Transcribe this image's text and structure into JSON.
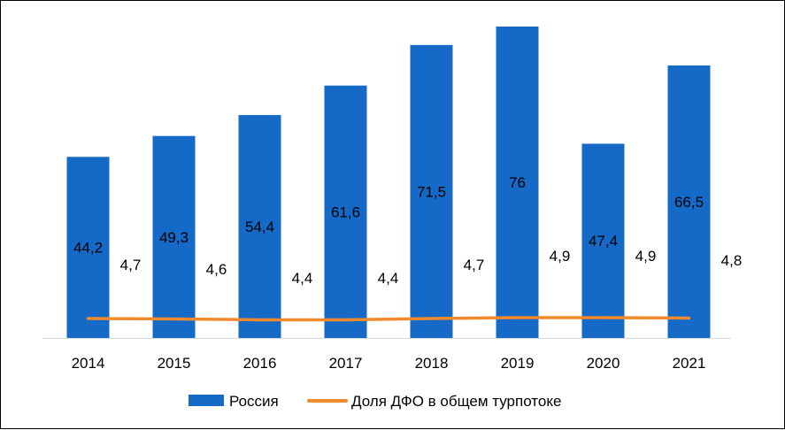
{
  "chart_data": {
    "type": "bar",
    "categories": [
      "2014",
      "2015",
      "2016",
      "2017",
      "2018",
      "2019",
      "2020",
      "2021"
    ],
    "series": [
      {
        "name": "Россия",
        "type": "bar",
        "color": "#1569C7",
        "values": [
          44.2,
          49.3,
          54.4,
          61.6,
          71.5,
          76,
          47.4,
          66.5
        ],
        "labels": [
          "44,2",
          "49,3",
          "54,4",
          "61,6",
          "71,5",
          "76",
          "47,4",
          "66,5"
        ]
      },
      {
        "name": "Доля ДФО в общем турпотоке",
        "type": "line",
        "color": "#F08A2C",
        "values": [
          4.7,
          4.6,
          4.4,
          4.4,
          4.7,
          4.9,
          4.9,
          4.8
        ],
        "labels": [
          "4,7",
          "4,6",
          "4,4",
          "4,4",
          "4,7",
          "4,9",
          "4,9",
          "4,8"
        ]
      }
    ],
    "ylim": [
      0,
      76
    ],
    "title": "",
    "xlabel": "",
    "ylabel": "",
    "grid": false,
    "legend_position": "bottom"
  }
}
